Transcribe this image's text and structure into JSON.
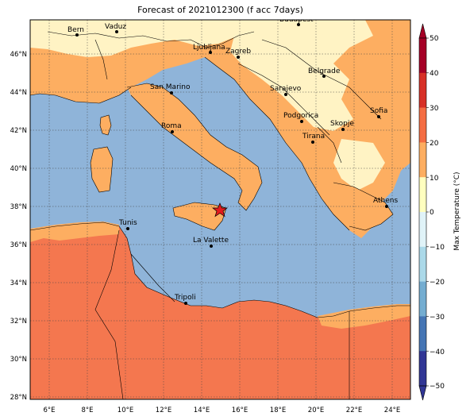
{
  "title": "Forecast of 2021012300 (f acc 7days)",
  "colorbar": {
    "label": "Max Temperature (°C)",
    "ticks": [
      "50",
      "40",
      "30",
      "20",
      "10",
      "0",
      "−10",
      "−20",
      "−30",
      "−40",
      "−50"
    ],
    "colors": [
      "#a50026",
      "#d73027",
      "#f46d43",
      "#fdae61",
      "#fee090",
      "#ffffbf",
      "#e0f3f8",
      "#abd9e9",
      "#74add1",
      "#4575b4",
      "#313695"
    ]
  },
  "lon_ticks": [
    "6°E",
    "8°E",
    "10°E",
    "12°E",
    "14°E",
    "16°E",
    "18°E",
    "20°E",
    "22°E",
    "24°E"
  ],
  "lat_ticks": [
    "46°N",
    "44°N",
    "42°N",
    "40°N",
    "38°N",
    "36°N",
    "34°N",
    "32°N",
    "30°N",
    "28°N"
  ],
  "cities": [
    {
      "name": "Bern"
    },
    {
      "name": "Vaduz"
    },
    {
      "name": "Budapest"
    },
    {
      "name": "Ljubljana"
    },
    {
      "name": "Zagreb"
    },
    {
      "name": "Belgrade"
    },
    {
      "name": "San Marino"
    },
    {
      "name": "Sarajevo"
    },
    {
      "name": "Sofia"
    },
    {
      "name": "Podgorica"
    },
    {
      "name": "Skopje"
    },
    {
      "name": "Roma"
    },
    {
      "name": "Tirana"
    },
    {
      "name": "Athens"
    },
    {
      "name": "Tunis"
    },
    {
      "name": "La Valette"
    },
    {
      "name": "Tripoli"
    }
  ],
  "marker": "star"
}
